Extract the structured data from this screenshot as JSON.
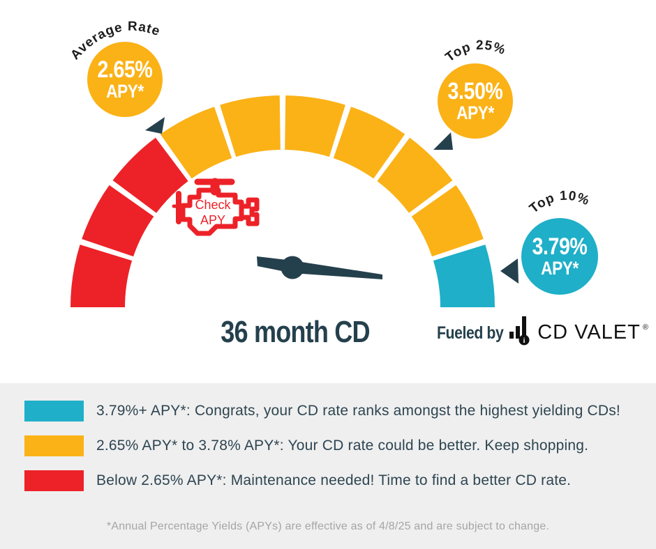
{
  "gauge": {
    "title": "36 month CD",
    "colors": {
      "red": "#EC2228",
      "yellow": "#FBB217",
      "teal": "#1FAFC8",
      "slate": "#25404D"
    },
    "segments": [
      "red",
      "red",
      "red",
      "yellow",
      "yellow",
      "yellow",
      "yellow",
      "yellow",
      "yellow",
      "teal"
    ],
    "engine": {
      "line1": "Check",
      "line2": "APY"
    },
    "markers": [
      {
        "label": "Average Rate",
        "value": "2.65%",
        "suffix": "APY*",
        "color": "yellow"
      },
      {
        "label": "Top 25%",
        "value": "3.50%",
        "suffix": "APY*",
        "color": "yellow"
      },
      {
        "label": "Top 10%",
        "value": "3.79%",
        "suffix": "APY*",
        "color": "teal"
      }
    ]
  },
  "branding": {
    "fueled_by": "Fueled by",
    "brand": "CD VALET",
    "registered": "®"
  },
  "legend": {
    "items": [
      {
        "color": "teal",
        "text": "3.79%+ APY*: Congrats, your CD rate ranks amongst the highest yielding CDs!"
      },
      {
        "color": "yellow",
        "text": "2.65% APY* to 3.78% APY*: Your CD rate could be better. Keep shopping."
      },
      {
        "color": "red",
        "text": "Below 2.65% APY*: Maintenance needed! Time to find a better CD rate."
      }
    ],
    "footnote": "*Annual Percentage Yields (APYs) are effective as of 4/8/25 and are subject to change."
  },
  "chart_data": {
    "type": "gauge",
    "title": "36 month CD",
    "arc_degrees": 180,
    "segment_count": 10,
    "segment_sweep_degrees": 18,
    "zones": [
      {
        "name": "red",
        "hex": "#EC2228",
        "segments": 3,
        "range": "Below 2.65% APY*",
        "message": "Maintenance needed! Time to find a better CD rate."
      },
      {
        "name": "yellow",
        "hex": "#FBB217",
        "segments": 6,
        "range": "2.65% APY* to 3.78% APY*",
        "message": "Your CD rate could be better. Keep shopping."
      },
      {
        "name": "teal",
        "hex": "#1FAFC8",
        "segments": 1,
        "range": "3.79%+ APY*",
        "message": "Congrats, your CD rate ranks amongst the highest yielding CDs!"
      }
    ],
    "markers": [
      {
        "label": "Average Rate",
        "apy_percent": 2.65,
        "display": "2.65% APY*"
      },
      {
        "label": "Top 25%",
        "apy_percent": 3.5,
        "display": "3.50% APY*"
      },
      {
        "label": "Top 10%",
        "apy_percent": 3.79,
        "display": "3.79% APY*"
      }
    ],
    "needle_points_to": "teal zone (right end of gauge)",
    "footnote": "*Annual Percentage Yields (APYs) are effective as of 4/8/25 and are subject to change."
  }
}
